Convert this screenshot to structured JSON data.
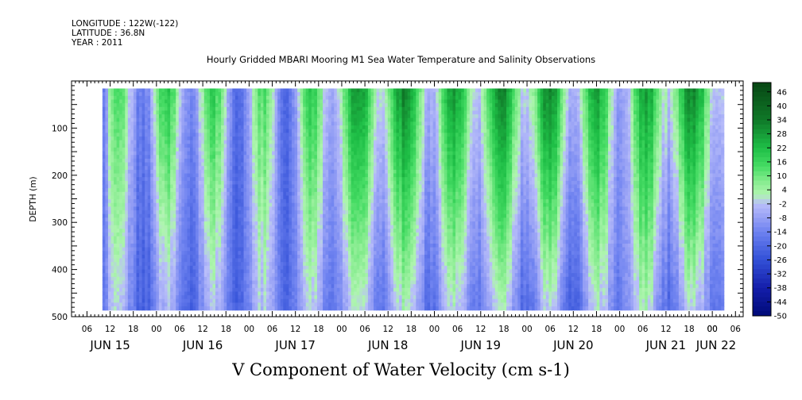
{
  "meta": {
    "longitude": "LONGITUDE : 122W(-122)",
    "latitude": "LATITUDE : 36.8N",
    "year": "YEAR : 2011"
  },
  "chart_data": {
    "type": "heatmap",
    "title": "Hourly Gridded MBARI Mooring M1 Sea Water Temperature and Salinity Observations",
    "subtitle": "V Component of Water Velocity (cm s-1)",
    "ylabel": "DEPTH (m)",
    "xlabel": "",
    "ylim": [
      500,
      0
    ],
    "y_ticks": [
      100,
      200,
      300,
      400,
      500
    ],
    "x_hour_labels": [
      "06",
      "12",
      "18",
      "00",
      "06",
      "12",
      "18",
      "00",
      "06",
      "12",
      "18",
      "00",
      "06",
      "12",
      "18",
      "00",
      "06",
      "12",
      "18",
      "00",
      "06",
      "12",
      "18",
      "00",
      "06",
      "12",
      "18",
      "00",
      "06",
      "12",
      "18",
      "00",
      "00"
    ],
    "x_day_labels": [
      "JUN 15",
      "JUN 16",
      "JUN 17",
      "JUN 18",
      "JUN 19",
      "JUN 20",
      "JUN 21",
      "JUN 22"
    ],
    "colorbar": {
      "labels": [
        "46",
        "40",
        "34",
        "28",
        "22",
        "16",
        "10",
        "4",
        "-2",
        "-8",
        "-14",
        "-20",
        "-26",
        "-32",
        "-38",
        "-44",
        "-50"
      ],
      "min": -50,
      "max": 50,
      "colors": {
        "strong_negative": "#000a78",
        "mid_negative": "#3c58d8",
        "weak_negative": "#b4bcfa",
        "weak_positive": "#a0f0a0",
        "mid_positive": "#22cc44",
        "strong_positive": "#0a4e16"
      }
    },
    "data_extent": {
      "depth_range": [
        16,
        486
      ],
      "time_start": "JUN 15 10:00",
      "time_end": "JUN 22 03:00"
    },
    "velocity_profile": {
      "description_columns": "time-step columns of V velocity by depth",
      "times": [
        "JUN 15 12",
        "JUN 16 00",
        "JUN 16 12",
        "JUN 17 00",
        "JUN 17 12",
        "JUN 18 00",
        "JUN 18 12",
        "JUN 19 00",
        "JUN 19 12",
        "JUN 20 00",
        "JUN 20 12",
        "JUN 21 00",
        "JUN 21 12",
        "JUN 22 00"
      ],
      "surface_values": [
        -6,
        2,
        4,
        -4,
        -2,
        12,
        18,
        10,
        14,
        16,
        12,
        6,
        18,
        12
      ],
      "deep_values": [
        -10,
        -14,
        -12,
        -12,
        -10,
        -8,
        -6,
        -10,
        -8,
        -10,
        -12,
        -6,
        -10,
        -8
      ]
    }
  }
}
